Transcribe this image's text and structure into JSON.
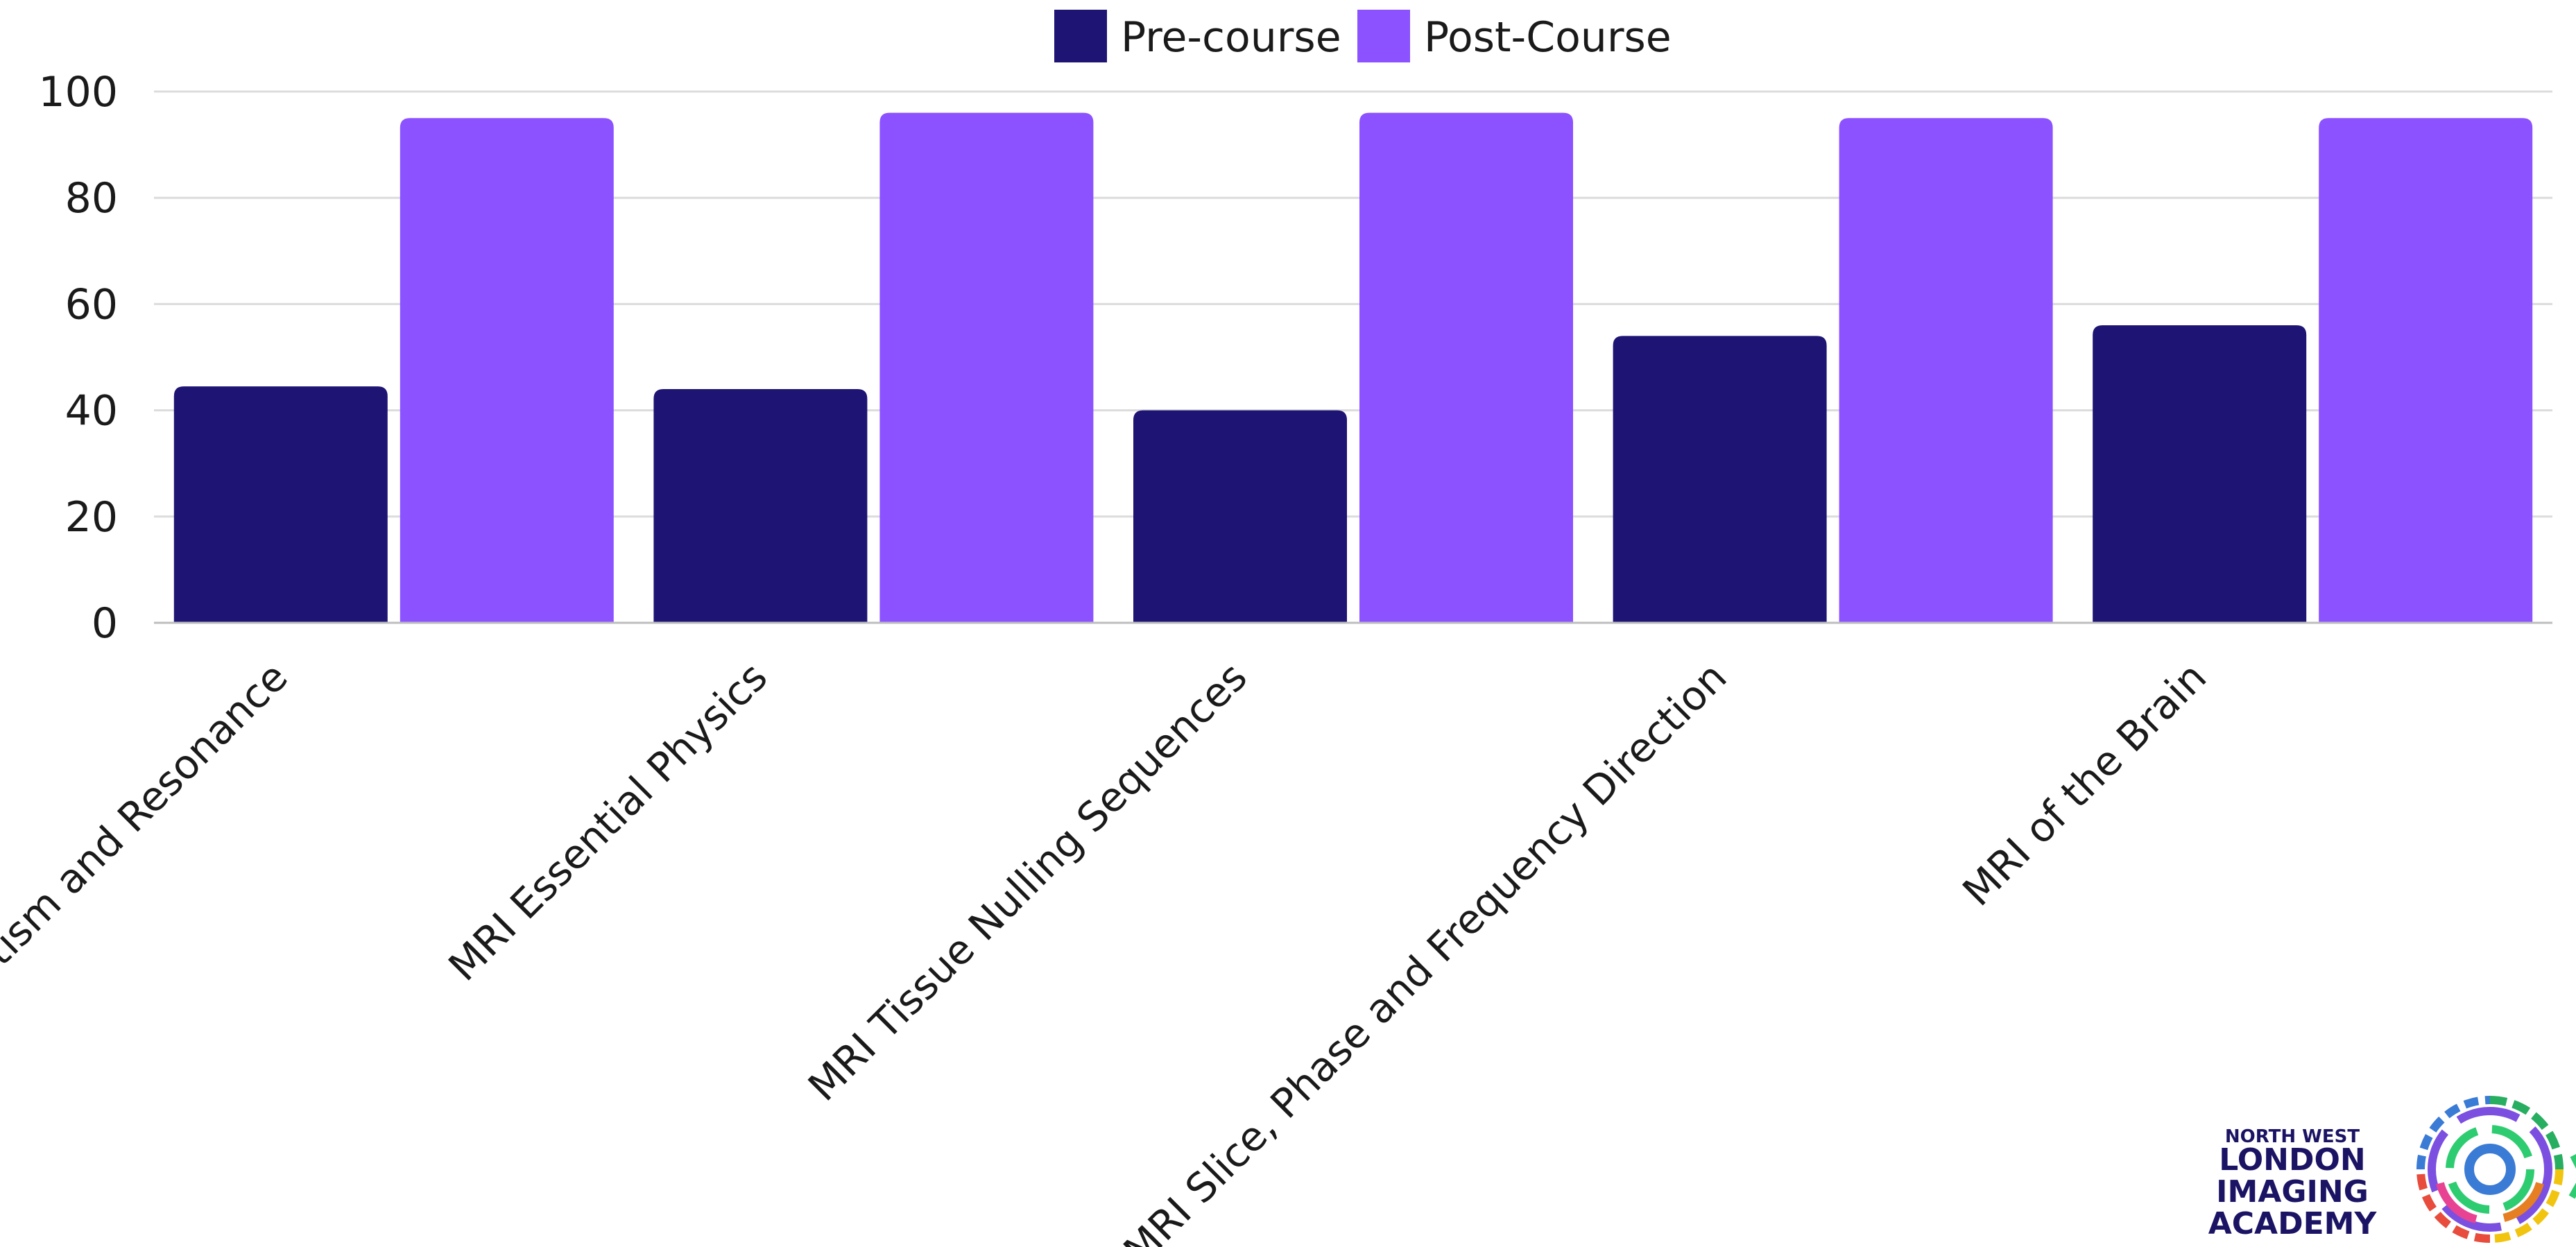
{
  "chart_data": {
    "type": "bar",
    "title": "",
    "xlabel": "",
    "ylabel": "",
    "categories": [
      "Magnetism and Resonance",
      "MRI Essential Physics",
      "MRI Tissue Nulling Sequences",
      "MRI Slice, Phase and Frequency Direction",
      "MRI of the Brain"
    ],
    "series": [
      {
        "name": "Pre-course",
        "color": "#1e1473",
        "values": [
          44.5,
          44,
          40,
          54,
          56
        ]
      },
      {
        "name": "Post-Course",
        "color": "#8c52ff",
        "values": [
          95,
          96,
          96,
          95,
          95
        ]
      }
    ],
    "ylim": [
      0,
      100
    ],
    "yticks": [
      0,
      20,
      40,
      60,
      80,
      100
    ],
    "grid": true,
    "legend": "top-center"
  },
  "logo": {
    "line1": "NORTH WEST",
    "line2": "LONDON",
    "line3": "IMAGING",
    "line4": "ACADEMY"
  }
}
